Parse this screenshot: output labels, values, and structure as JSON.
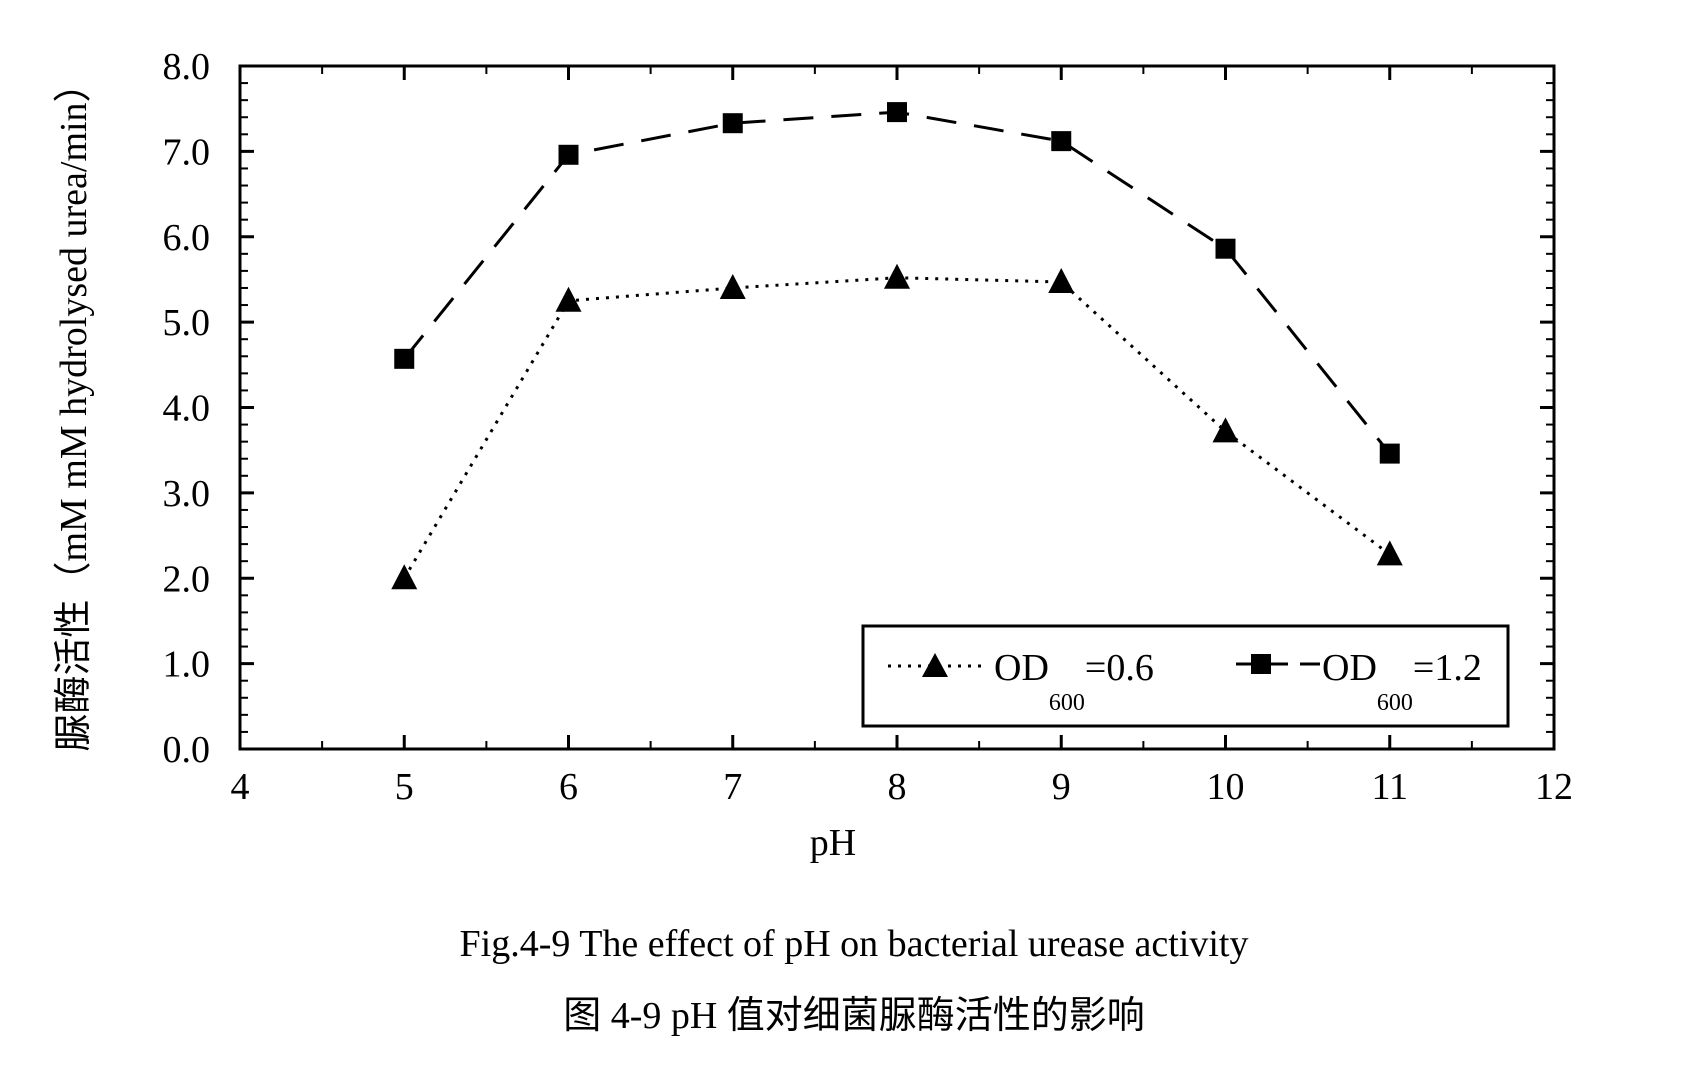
{
  "chart_data": {
    "type": "line",
    "xlabel": "pH",
    "ylabel": "脲酶活性（mM mM hydrolysed urea/min）",
    "xlim": [
      4,
      12
    ],
    "ylim": [
      0,
      8
    ],
    "xticks": [
      "4",
      "5",
      "6",
      "7",
      "8",
      "9",
      "10",
      "11",
      "12"
    ],
    "yticks": [
      "0.0",
      "1.0",
      "2.0",
      "3.0",
      "4.0",
      "5.0",
      "6.0",
      "7.0",
      "8.0"
    ],
    "grid": false,
    "legend_position": "bottom-right",
    "series": [
      {
        "name": "OD600=0.6",
        "name_main": "OD",
        "name_sub": "600",
        "name_rest": "=0.6",
        "marker": "triangle",
        "line_style": "dotted",
        "x": [
          5,
          6,
          7,
          8,
          9,
          10,
          11
        ],
        "y": [
          2.0,
          5.25,
          5.4,
          5.52,
          5.47,
          3.72,
          2.28
        ]
      },
      {
        "name": "OD600=1.2",
        "name_main": "OD",
        "name_sub": "600",
        "name_rest": "=1.2",
        "marker": "square",
        "line_style": "dashed",
        "x": [
          5,
          6,
          7,
          8,
          9,
          10,
          11
        ],
        "y": [
          4.57,
          6.96,
          7.33,
          7.46,
          7.12,
          5.86,
          3.46
        ]
      }
    ]
  },
  "caption": {
    "english": "Fig.4-9 The effect of pH on bacterial urease activity",
    "chinese": "图 4-9 pH 值对细菌脲酶活性的影响"
  }
}
